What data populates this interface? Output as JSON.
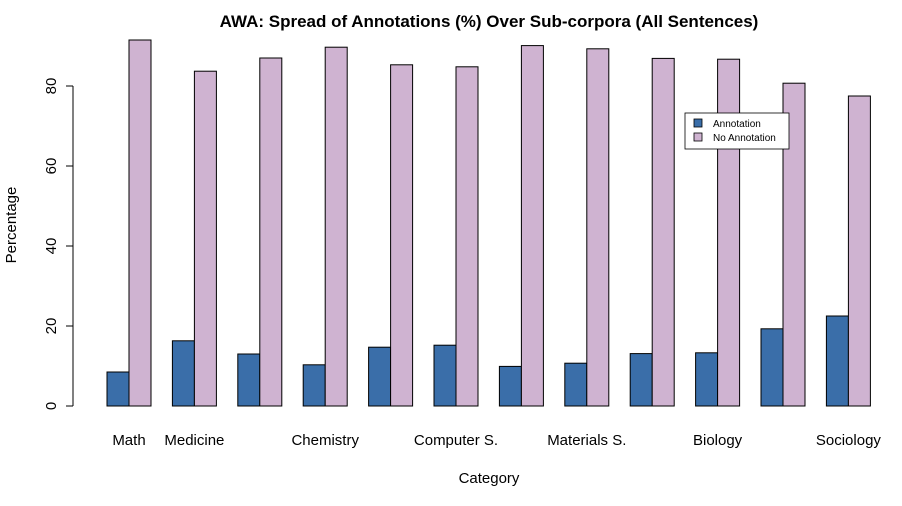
{
  "chart_data": {
    "type": "bar",
    "title": "AWA: Spread of Annotations (%) Over Sub-corpora (All Sentences)",
    "xlabel": "Category",
    "ylabel": "Percentage",
    "ylim": [
      0,
      92
    ],
    "yticks": [
      0,
      20,
      40,
      60,
      80
    ],
    "categories": [
      "Math",
      "Medicine",
      "",
      "Chemistry",
      "",
      "Computer S.",
      "",
      "Materials S.",
      "",
      "Biology",
      "",
      "Sociology"
    ],
    "series": [
      {
        "name": "Annotation",
        "color": "#3a6ea9",
        "values": [
          8.5,
          16.3,
          13.0,
          10.3,
          14.7,
          15.2,
          9.9,
          10.7,
          13.1,
          13.3,
          19.3,
          22.5
        ]
      },
      {
        "name": "No Annotation",
        "color": "#cfb3d1",
        "values": [
          91.5,
          83.7,
          87.0,
          89.7,
          85.3,
          84.8,
          90.1,
          89.3,
          86.9,
          86.7,
          80.7,
          77.5
        ]
      }
    ],
    "legend_position": "top-right",
    "grid": false
  }
}
